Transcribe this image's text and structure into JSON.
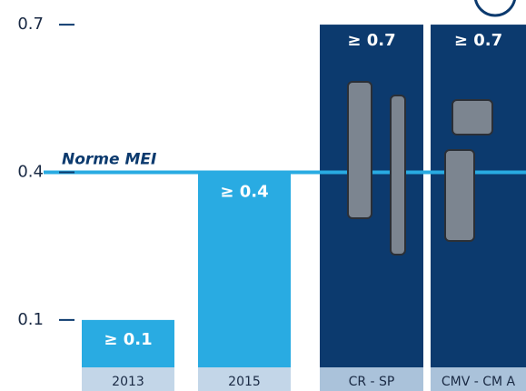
{
  "chart_data": {
    "type": "bar",
    "categories": [
      "2013",
      "2015",
      "CR - SP",
      "CMV - CM A"
    ],
    "values": [
      0.1,
      0.4,
      0.7,
      0.7
    ],
    "value_labels": [
      "≥ 0.1",
      "≥ 0.4",
      "≥ 0.7",
      "≥ 0.7"
    ],
    "colors": [
      "#29abe2",
      "#29abe2",
      "#0c3a6e",
      "#0c3a6e"
    ],
    "ylim": [
      0,
      0.75
    ],
    "yticks": [
      0.1,
      0.4,
      0.7
    ],
    "reference_line": {
      "value": 0.4,
      "label": "Norme MEI",
      "color": "#29abe2"
    }
  }
}
